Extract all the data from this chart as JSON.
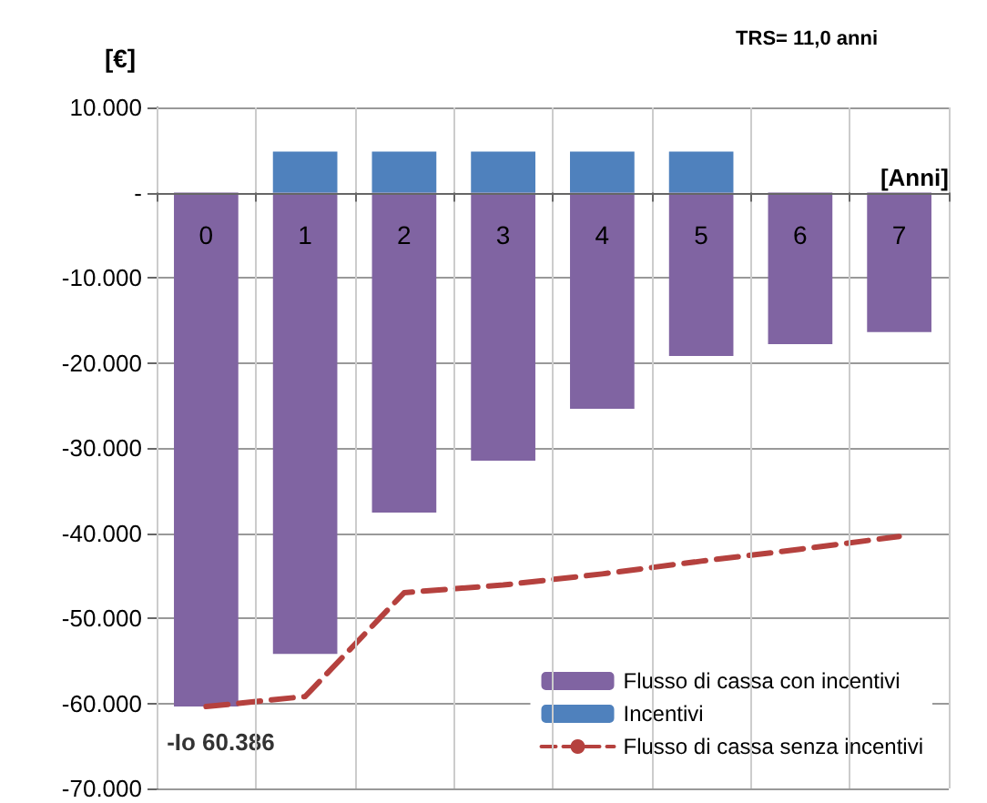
{
  "chart_data": {
    "type": "bar",
    "stacked": true,
    "categories": [
      "0",
      "1",
      "2",
      "3",
      "4",
      "5",
      "6",
      "7"
    ],
    "series": [
      {
        "name": "Flusso di cassa con incentivi",
        "color": "#8064a2",
        "values": [
          -60386,
          -54200,
          -37600,
          -31500,
          -25400,
          -19200,
          -17800,
          -16400
        ]
      },
      {
        "name": "Incentivi",
        "color": "#4f81bd",
        "values": [
          null,
          4800,
          4800,
          4800,
          4800,
          4800,
          null,
          null
        ]
      },
      {
        "name": "Flusso di cassa senza incentivi",
        "type": "line",
        "color": "#b5413e",
        "line_style": "dashed",
        "marker": "none",
        "values": [
          -60386,
          -59200,
          -47000,
          -46100,
          -44800,
          -43300,
          -41900,
          -40400
        ]
      }
    ],
    "ylabel": "[€]",
    "xlabel": "[Anni]",
    "ylim": [
      -70000,
      10000
    ],
    "yticks": [
      {
        "value": -70000,
        "label": "-70.000"
      },
      {
        "value": -60000,
        "label": "-60.000"
      },
      {
        "value": -50000,
        "label": "-50.000"
      },
      {
        "value": -40000,
        "label": "-40.000"
      },
      {
        "value": -30000,
        "label": "-30.000"
      },
      {
        "value": -20000,
        "label": "-20.000"
      },
      {
        "value": -10000,
        "label": "-10.000"
      },
      {
        "value": 0,
        "label": "-"
      },
      {
        "value": 10000,
        "label": "10.000"
      }
    ],
    "annotations": [
      "TRS= 11,0 anni",
      {
        "text": "-Io 60.386",
        "x": "0",
        "y": -60386
      }
    ],
    "grid": true,
    "legend": "bottom right"
  }
}
